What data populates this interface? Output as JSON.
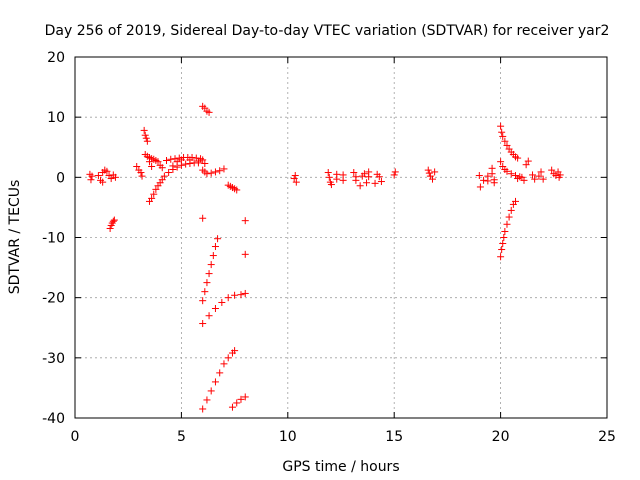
{
  "chart_data": {
    "type": "scatter",
    "title": "Day 256 of 2019, Sidereal Day-to-day VTEC variation (SDTVAR) for receiver yar2",
    "xlabel": "GPS time / hours",
    "ylabel": "SDTVAR / TECUs",
    "xlim": [
      0,
      25
    ],
    "ylim": [
      -40,
      20
    ],
    "xticks": [
      0,
      5,
      10,
      15,
      20,
      25
    ],
    "yticks": [
      -40,
      -30,
      -20,
      -10,
      0,
      10,
      20
    ],
    "grid": true,
    "marker": "+",
    "color": "#ff0000",
    "series": [
      {
        "name": "SDTVAR",
        "points": [
          [
            0.7,
            0.5
          ],
          [
            0.75,
            -0.4
          ],
          [
            0.8,
            0.2
          ],
          [
            1.1,
            0.3
          ],
          [
            1.2,
            -0.5
          ],
          [
            1.3,
            0.8
          ],
          [
            1.4,
            1.2
          ],
          [
            1.5,
            1.0
          ],
          [
            1.6,
            0.3
          ],
          [
            1.7,
            -0.2
          ],
          [
            1.8,
            0.4
          ],
          [
            1.9,
            0.0
          ],
          [
            1.3,
            -0.8
          ],
          [
            1.65,
            -8.5
          ],
          [
            1.7,
            -8.0
          ],
          [
            1.75,
            -7.6
          ],
          [
            1.8,
            -7.3
          ],
          [
            1.85,
            -7.1
          ],
          [
            2.9,
            1.8
          ],
          [
            3.0,
            1.2
          ],
          [
            3.1,
            0.8
          ],
          [
            3.15,
            0.2
          ],
          [
            3.25,
            7.8
          ],
          [
            3.3,
            7.0
          ],
          [
            3.35,
            6.5
          ],
          [
            3.4,
            6.0
          ],
          [
            3.3,
            3.8
          ],
          [
            3.4,
            3.5
          ],
          [
            3.5,
            3.3
          ],
          [
            3.6,
            3.1
          ],
          [
            3.7,
            3.0
          ],
          [
            3.8,
            2.8
          ],
          [
            3.5,
            2.6
          ],
          [
            3.6,
            1.8
          ],
          [
            3.5,
            -4.0
          ],
          [
            3.6,
            -3.5
          ],
          [
            3.7,
            -2.8
          ],
          [
            3.8,
            -2.0
          ],
          [
            3.9,
            -1.4
          ],
          [
            4.0,
            -0.9
          ],
          [
            4.1,
            -0.4
          ],
          [
            4.2,
            0.2
          ],
          [
            4.4,
            0.8
          ],
          [
            4.6,
            1.3
          ],
          [
            4.8,
            1.7
          ],
          [
            5.0,
            2.0
          ],
          [
            5.2,
            2.2
          ],
          [
            5.4,
            2.3
          ],
          [
            5.6,
            2.4
          ],
          [
            5.8,
            2.4
          ],
          [
            3.9,
            2.6
          ],
          [
            4.0,
            2.0
          ],
          [
            4.1,
            1.6
          ],
          [
            4.3,
            2.8
          ],
          [
            4.5,
            3.0
          ],
          [
            4.7,
            3.1
          ],
          [
            4.9,
            3.2
          ],
          [
            5.1,
            3.3
          ],
          [
            5.3,
            3.3
          ],
          [
            5.5,
            3.3
          ],
          [
            5.7,
            3.2
          ],
          [
            5.9,
            3.1
          ],
          [
            6.0,
            2.9
          ],
          [
            4.6,
            1.9
          ],
          [
            4.8,
            2.6
          ],
          [
            5.0,
            2.9
          ],
          [
            5.4,
            2.9
          ],
          [
            5.8,
            2.7
          ],
          [
            6.1,
            2.3
          ],
          [
            6.0,
            1.2
          ],
          [
            6.1,
            0.9
          ],
          [
            6.0,
            11.8
          ],
          [
            6.1,
            11.5
          ],
          [
            6.2,
            11.0
          ],
          [
            6.3,
            10.8
          ],
          [
            6.0,
            -6.8
          ],
          [
            6.2,
            0.6
          ],
          [
            6.4,
            0.7
          ],
          [
            6.6,
            0.9
          ],
          [
            6.8,
            1.1
          ],
          [
            7.0,
            1.4
          ],
          [
            7.2,
            -1.3
          ],
          [
            7.3,
            -1.5
          ],
          [
            7.4,
            -1.7
          ],
          [
            7.5,
            -1.9
          ],
          [
            7.6,
            -2.1
          ],
          [
            6.0,
            -20.5
          ],
          [
            6.1,
            -19.0
          ],
          [
            6.2,
            -17.5
          ],
          [
            6.3,
            -16.0
          ],
          [
            6.4,
            -14.5
          ],
          [
            6.5,
            -13.0
          ],
          [
            6.6,
            -11.5
          ],
          [
            6.7,
            -10.2
          ],
          [
            6.0,
            -24.3
          ],
          [
            6.3,
            -23.0
          ],
          [
            6.6,
            -21.8
          ],
          [
            6.9,
            -20.8
          ],
          [
            7.2,
            -20.0
          ],
          [
            7.5,
            -19.6
          ],
          [
            7.8,
            -19.5
          ],
          [
            8.0,
            -19.3
          ],
          [
            8.0,
            -7.2
          ],
          [
            8.0,
            -12.8
          ],
          [
            6.0,
            -38.5
          ],
          [
            6.2,
            -37.0
          ],
          [
            6.4,
            -35.5
          ],
          [
            6.6,
            -34.0
          ],
          [
            6.8,
            -32.5
          ],
          [
            7.0,
            -31.0
          ],
          [
            7.2,
            -30.0
          ],
          [
            7.4,
            -29.2
          ],
          [
            7.5,
            -28.8
          ],
          [
            7.4,
            -38.2
          ],
          [
            7.6,
            -37.5
          ],
          [
            7.8,
            -36.9
          ],
          [
            8.0,
            -36.5
          ],
          [
            10.3,
            -0.2
          ],
          [
            10.35,
            0.3
          ],
          [
            10.4,
            -0.8
          ],
          [
            11.9,
            0.8
          ],
          [
            11.95,
            0.0
          ],
          [
            12.0,
            -0.8
          ],
          [
            12.05,
            -1.2
          ],
          [
            12.3,
            0.5
          ],
          [
            12.3,
            -0.3
          ],
          [
            12.6,
            0.4
          ],
          [
            12.6,
            -0.5
          ],
          [
            13.1,
            0.8
          ],
          [
            13.2,
            0.1
          ],
          [
            13.2,
            -0.5
          ],
          [
            13.4,
            -1.4
          ],
          [
            13.5,
            0.2
          ],
          [
            13.6,
            0.6
          ],
          [
            13.7,
            -0.9
          ],
          [
            13.8,
            0.1
          ],
          [
            13.8,
            0.9
          ],
          [
            14.1,
            -1.0
          ],
          [
            14.2,
            0.5
          ],
          [
            14.3,
            0.1
          ],
          [
            14.4,
            -0.7
          ],
          [
            15.0,
            0.4
          ],
          [
            15.05,
            0.9
          ],
          [
            16.6,
            1.2
          ],
          [
            16.65,
            0.7
          ],
          [
            16.7,
            0.2
          ],
          [
            16.8,
            -0.3
          ],
          [
            16.9,
            0.9
          ],
          [
            19.0,
            0.3
          ],
          [
            19.05,
            -1.6
          ],
          [
            19.2,
            -0.5
          ],
          [
            19.4,
            0.2
          ],
          [
            19.4,
            -0.6
          ],
          [
            19.6,
            1.5
          ],
          [
            19.6,
            0.6
          ],
          [
            19.7,
            -0.4
          ],
          [
            19.7,
            -0.9
          ],
          [
            20.0,
            8.5
          ],
          [
            20.05,
            7.5
          ],
          [
            20.1,
            6.8
          ],
          [
            20.2,
            6.0
          ],
          [
            20.3,
            5.3
          ],
          [
            20.4,
            4.7
          ],
          [
            20.5,
            4.2
          ],
          [
            20.6,
            3.8
          ],
          [
            20.7,
            3.4
          ],
          [
            20.8,
            3.2
          ],
          [
            20.0,
            -13.2
          ],
          [
            20.05,
            -12.0
          ],
          [
            20.1,
            -11.0
          ],
          [
            20.15,
            -10.0
          ],
          [
            20.2,
            -9.0
          ],
          [
            20.3,
            -7.8
          ],
          [
            20.4,
            -6.6
          ],
          [
            20.5,
            -5.5
          ],
          [
            20.6,
            -4.5
          ],
          [
            20.7,
            -4.0
          ],
          [
            20.0,
            2.6
          ],
          [
            20.1,
            1.8
          ],
          [
            20.2,
            1.3
          ],
          [
            20.3,
            1.0
          ],
          [
            20.5,
            0.6
          ],
          [
            20.7,
            0.3
          ],
          [
            20.8,
            -0.2
          ],
          [
            20.9,
            0.1
          ],
          [
            21.0,
            0.0
          ],
          [
            21.1,
            -0.5
          ],
          [
            21.2,
            2.1
          ],
          [
            21.3,
            2.7
          ],
          [
            21.5,
            0.4
          ],
          [
            21.6,
            -0.3
          ],
          [
            21.8,
            0.2
          ],
          [
            21.9,
            0.9
          ],
          [
            22.0,
            -0.3
          ],
          [
            22.4,
            1.2
          ],
          [
            22.5,
            0.6
          ],
          [
            22.6,
            0.3
          ],
          [
            22.7,
            0.9
          ],
          [
            22.75,
            0.0
          ],
          [
            22.8,
            0.4
          ]
        ]
      }
    ]
  }
}
